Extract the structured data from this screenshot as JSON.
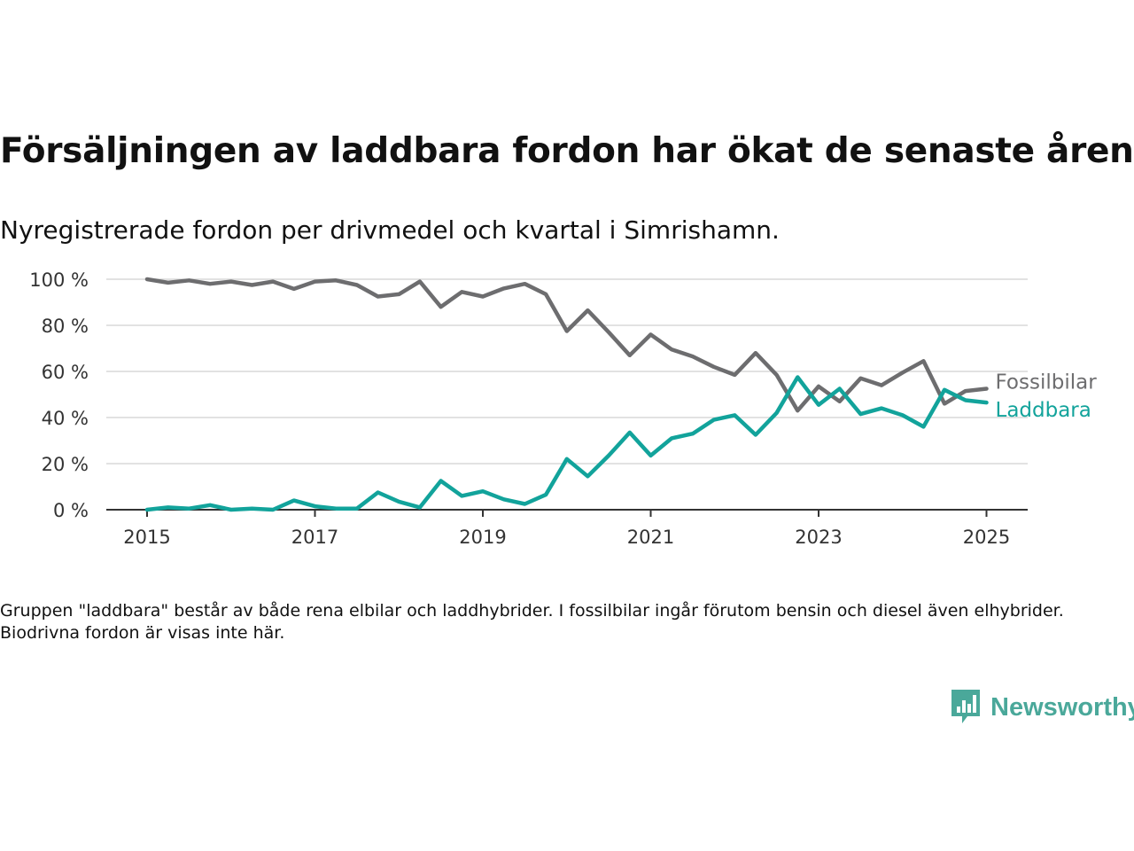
{
  "title": "Försäljningen av laddbara fordon har ökat de senaste åren",
  "subtitle": "Nyregistrerade fordon per drivmedel och kvartal i Simrishamn.",
  "note": "Gruppen \"laddbara\" består av både rena elbilar och laddhybrider. I fossilbilar ingår förutom bensin och diesel även elhybrider. Biodrivna fordon är visas inte här.",
  "logo": {
    "text": "Newsworthy",
    "icon": "newsworthy-bar-chart-icon",
    "color": "#4aa89a"
  },
  "chart_data": {
    "type": "line",
    "title": "Försäljningen av laddbara fordon har ökat de senaste åren",
    "subtitle": "Nyregistrerade fordon per drivmedel och kvartal i Simrishamn.",
    "xlabel": "",
    "ylabel": "",
    "xlim": [
      2014.75,
      2025.75
    ],
    "ylim": [
      0,
      100
    ],
    "x_ticks": [
      "2015",
      "2017",
      "2019",
      "2021",
      "2023",
      "2025"
    ],
    "y_ticks": [
      "0 %",
      "20 %",
      "40 %",
      "60 %",
      "80 %",
      "100 %"
    ],
    "x_tick_values": [
      2015,
      2017,
      2019,
      2021,
      2023,
      2025
    ],
    "y_tick_values": [
      0,
      20,
      40,
      60,
      80,
      100
    ],
    "grid": "horizontal",
    "legend": "direct labels at line ends (right)",
    "x": [
      "2015-Q1",
      "2015-Q2",
      "2015-Q3",
      "2015-Q4",
      "2016-Q1",
      "2016-Q2",
      "2016-Q3",
      "2016-Q4",
      "2017-Q1",
      "2017-Q2",
      "2017-Q3",
      "2017-Q4",
      "2018-Q1",
      "2018-Q2",
      "2018-Q3",
      "2018-Q4",
      "2019-Q1",
      "2019-Q2",
      "2019-Q3",
      "2019-Q4",
      "2020-Q1",
      "2020-Q2",
      "2020-Q3",
      "2020-Q4",
      "2021-Q1",
      "2021-Q2",
      "2021-Q3",
      "2021-Q4",
      "2022-Q1",
      "2022-Q2",
      "2022-Q3",
      "2022-Q4",
      "2023-Q1",
      "2023-Q2",
      "2023-Q3",
      "2023-Q4",
      "2024-Q1",
      "2024-Q2",
      "2024-Q3",
      "2024-Q4",
      "2025-Q1"
    ],
    "series": [
      {
        "name": "Fossilbilar",
        "color": "#6d6d6f",
        "values": [
          100,
          98.5,
          99.5,
          98,
          99,
          97.5,
          99,
          95.8,
          99,
          99.5,
          97.5,
          92.5,
          93.5,
          99,
          88,
          94.5,
          92.5,
          96,
          98,
          93.5,
          77.5,
          86.5,
          77,
          67,
          76,
          69.5,
          66.5,
          62,
          58.5,
          68,
          58.5,
          43,
          53.5,
          47,
          57,
          54,
          59.5,
          64.5,
          46,
          51.5,
          52.5
        ]
      },
      {
        "name": "Laddbara",
        "color": "#12a39b",
        "values": [
          0,
          1,
          0.5,
          2,
          0,
          0.5,
          0,
          4,
          1.5,
          0.5,
          0.5,
          7.5,
          3.5,
          1,
          12.5,
          6,
          8,
          4.5,
          2.5,
          6.5,
          22,
          14.5,
          23.5,
          33.5,
          23.5,
          31,
          33,
          39,
          41,
          32.5,
          42,
          57.5,
          45.5,
          52.5,
          41.5,
          44,
          41,
          36,
          52,
          47.5,
          46.5
        ]
      }
    ]
  }
}
